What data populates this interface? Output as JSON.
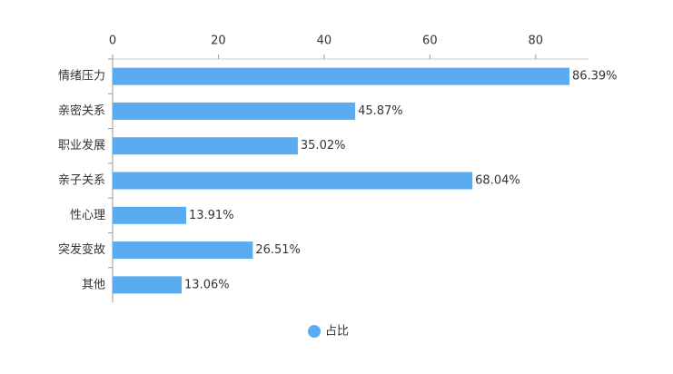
{
  "chart_data": {
    "type": "bar",
    "orientation": "horizontal",
    "categories": [
      "情绪压力",
      "亲密关系",
      "职业发展",
      "亲子关系",
      "性心理",
      "突发变故",
      "其他"
    ],
    "series": [
      {
        "name": "占比",
        "color": "#5aabf0",
        "values": [
          86.39,
          45.87,
          35.02,
          68.04,
          13.91,
          26.51,
          13.06
        ],
        "value_labels": [
          "86.39%",
          "45.87%",
          "35.02%",
          "68.04%",
          "13.91%",
          "26.51%",
          "13.06%"
        ]
      }
    ],
    "xlim": [
      0,
      90
    ],
    "xticks": [
      0,
      20,
      40,
      60,
      80
    ],
    "legend": "bottom"
  }
}
